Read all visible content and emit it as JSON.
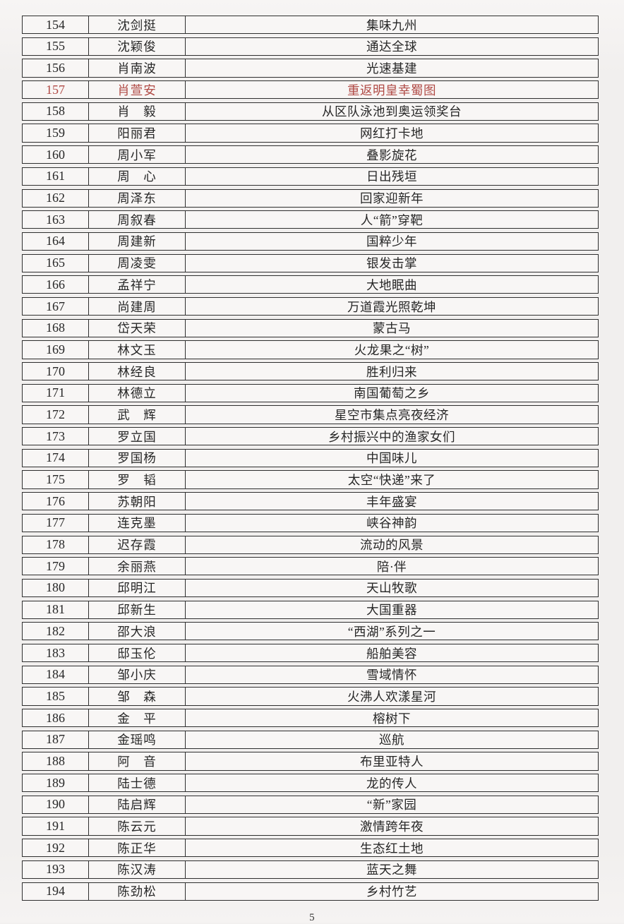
{
  "page": {
    "number": "5"
  },
  "colors": {
    "highlight_red": "#b04a45",
    "border": "#2f2f2f",
    "background": "#f2f0ef"
  },
  "table": {
    "columns": [
      "number",
      "name",
      "title"
    ],
    "rows": [
      {
        "no": "154",
        "name": "沈剑挺",
        "title": "集味九州",
        "highlight": false
      },
      {
        "no": "155",
        "name": "沈颖俊",
        "title": "通达全球",
        "highlight": false
      },
      {
        "no": "156",
        "name": "肖南波",
        "title": "光速基建",
        "highlight": false
      },
      {
        "no": "157",
        "name": "肖萱安",
        "title": "重返明皇幸蜀图",
        "highlight": true
      },
      {
        "no": "158",
        "name": "肖　毅",
        "title": "从区队泳池到奥运领奖台",
        "highlight": false
      },
      {
        "no": "159",
        "name": "阳丽君",
        "title": "网红打卡地",
        "highlight": false
      },
      {
        "no": "160",
        "name": "周小军",
        "title": "叠影旋花",
        "highlight": false
      },
      {
        "no": "161",
        "name": "周　心",
        "title": "日出残垣",
        "highlight": false
      },
      {
        "no": "162",
        "name": "周泽东",
        "title": "回家迎新年",
        "highlight": false
      },
      {
        "no": "163",
        "name": "周叙春",
        "title": "人“箭”穿靶",
        "highlight": false
      },
      {
        "no": "164",
        "name": "周建新",
        "title": "国粹少年",
        "highlight": false
      },
      {
        "no": "165",
        "name": "周凌雯",
        "title": "银发击掌",
        "highlight": false
      },
      {
        "no": "166",
        "name": "孟祥宁",
        "title": "大地眠曲",
        "highlight": false
      },
      {
        "no": "167",
        "name": "尚建周",
        "title": "万道霞光照乾坤",
        "highlight": false
      },
      {
        "no": "168",
        "name": "岱天荣",
        "title": "蒙古马",
        "highlight": false
      },
      {
        "no": "169",
        "name": "林文玉",
        "title": "火龙果之“树”",
        "highlight": false
      },
      {
        "no": "170",
        "name": "林经良",
        "title": "胜利归来",
        "highlight": false
      },
      {
        "no": "171",
        "name": "林德立",
        "title": "南国葡萄之乡",
        "highlight": false
      },
      {
        "no": "172",
        "name": "武　辉",
        "title": "星空市集点亮夜经济",
        "highlight": false
      },
      {
        "no": "173",
        "name": "罗立国",
        "title": "乡村振兴中的渔家女们",
        "highlight": false
      },
      {
        "no": "174",
        "name": "罗国杨",
        "title": "中国味儿",
        "highlight": false
      },
      {
        "no": "175",
        "name": "罗　韬",
        "title": "太空“快递”来了",
        "highlight": false
      },
      {
        "no": "176",
        "name": "苏朝阳",
        "title": "丰年盛宴",
        "highlight": false
      },
      {
        "no": "177",
        "name": "连克墨",
        "title": "峡谷神韵",
        "highlight": false
      },
      {
        "no": "178",
        "name": "迟存霞",
        "title": "流动的风景",
        "highlight": false
      },
      {
        "no": "179",
        "name": "余丽燕",
        "title": "陪·伴",
        "highlight": false
      },
      {
        "no": "180",
        "name": "邱明江",
        "title": "天山牧歌",
        "highlight": false
      },
      {
        "no": "181",
        "name": "邱新生",
        "title": "大国重器",
        "highlight": false
      },
      {
        "no": "182",
        "name": "邵大浪",
        "title": "“西湖”系列之一",
        "highlight": false
      },
      {
        "no": "183",
        "name": "邸玉伦",
        "title": "船舶美容",
        "highlight": false
      },
      {
        "no": "184",
        "name": "邹小庆",
        "title": "雪域情怀",
        "highlight": false
      },
      {
        "no": "185",
        "name": "邹　森",
        "title": "火沸人欢漾星河",
        "highlight": false
      },
      {
        "no": "186",
        "name": "金　平",
        "title": "榕树下",
        "highlight": false
      },
      {
        "no": "187",
        "name": "金瑶鸣",
        "title": "巡航",
        "highlight": false
      },
      {
        "no": "188",
        "name": "阿　音",
        "title": "布里亚特人",
        "highlight": false
      },
      {
        "no": "189",
        "name": "陆士德",
        "title": "龙的传人",
        "highlight": false
      },
      {
        "no": "190",
        "name": "陆启辉",
        "title": "“新”家园",
        "highlight": false
      },
      {
        "no": "191",
        "name": "陈云元",
        "title": "激情跨年夜",
        "highlight": false
      },
      {
        "no": "192",
        "name": "陈正华",
        "title": "生态红土地",
        "highlight": false
      },
      {
        "no": "193",
        "name": "陈汉涛",
        "title": "蓝天之舞",
        "highlight": false
      },
      {
        "no": "194",
        "name": "陈劲松",
        "title": "乡村竹艺",
        "highlight": false
      }
    ]
  }
}
